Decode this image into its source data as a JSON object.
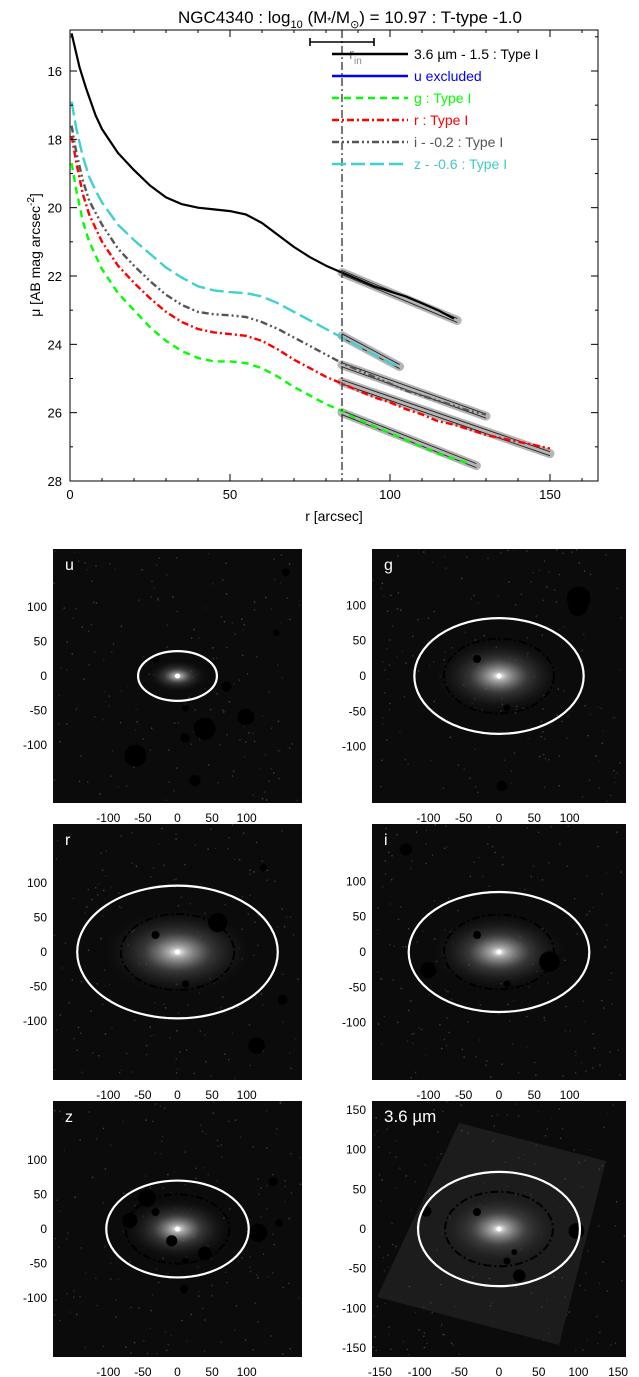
{
  "chart_data": [
    {
      "type": "line",
      "title": "NGC4340 : log10 (M*/M⊙) = 10.97 : T-type -1.0",
      "title_parts": [
        "NGC4340 : log",
        "10",
        " (M",
        "*",
        "/M",
        "⊙",
        ") = 10.97 : T-type -1.0"
      ],
      "xlabel": "r [arcsec]",
      "ylabel_parts": [
        "μ [AB mag arcsec",
        "-2",
        "]"
      ],
      "xlim": [
        0,
        165
      ],
      "ylim": [
        28,
        14.8
      ],
      "x_ticks": [
        0,
        50,
        100,
        150
      ],
      "y_ticks": [
        16,
        18,
        20,
        22,
        24,
        26,
        28
      ],
      "y_reversed": true,
      "grid": false,
      "legend_position": "top-right",
      "r_break": 85,
      "r_break_label": "r",
      "r_break_label_sub": "in",
      "r_break_errorbar": [
        75,
        95
      ],
      "fits": [
        {
          "series": "3.6 µm",
          "x": [
            85,
            121
          ],
          "y": [
            21.9,
            23.3
          ]
        },
        {
          "series": "g",
          "x": [
            85,
            127
          ],
          "y": [
            26.0,
            27.55
          ]
        },
        {
          "series": "r",
          "x": [
            85,
            150
          ],
          "y": [
            25.1,
            27.2
          ]
        },
        {
          "series": "i",
          "x": [
            85,
            130
          ],
          "y": [
            24.6,
            26.1
          ]
        },
        {
          "series": "z",
          "x": [
            85,
            103
          ],
          "y": [
            23.75,
            24.65
          ]
        }
      ],
      "series": [
        {
          "name": "3.6 µm - 1.5 : Type I",
          "key": "3.6 µm",
          "color": "#000000",
          "style": "solid",
          "x": [
            0.5,
            3,
            5,
            8,
            10,
            15,
            20,
            25,
            30,
            35,
            40,
            45,
            50,
            55,
            60,
            65,
            70,
            75,
            80,
            85,
            90,
            95,
            100,
            105,
            110,
            115,
            120
          ],
          "y": [
            14.9,
            15.9,
            16.5,
            17.3,
            17.7,
            18.4,
            18.9,
            19.35,
            19.7,
            19.9,
            20.0,
            20.05,
            20.1,
            20.2,
            20.45,
            20.8,
            21.15,
            21.45,
            21.7,
            21.9,
            22.1,
            22.3,
            22.45,
            22.6,
            22.8,
            23.0,
            23.25
          ]
        },
        {
          "name": "u excluded",
          "key": "u",
          "color": "#0000ff",
          "style": "solid",
          "x": [],
          "y": []
        },
        {
          "name": "g : Type I",
          "key": "g",
          "color": "#00ff00",
          "style": "dash",
          "x": [
            0.5,
            2,
            4,
            6,
            8,
            10,
            15,
            20,
            25,
            30,
            35,
            40,
            45,
            50,
            55,
            60,
            65,
            70,
            75,
            80,
            85,
            90,
            95,
            100,
            105,
            110,
            115,
            120,
            125
          ],
          "y": [
            18.7,
            19.5,
            20.4,
            21.0,
            21.4,
            21.8,
            22.5,
            23.0,
            23.5,
            23.9,
            24.2,
            24.4,
            24.5,
            24.5,
            24.55,
            24.7,
            24.95,
            25.25,
            25.5,
            25.75,
            25.95,
            26.2,
            26.4,
            26.6,
            26.8,
            27.0,
            27.2,
            27.35,
            27.5
          ]
        },
        {
          "name": "r : Type I",
          "key": "r",
          "color": "#ff0000",
          "style": "dashdot",
          "x": [
            0.5,
            2,
            4,
            6,
            8,
            10,
            15,
            20,
            25,
            30,
            35,
            40,
            45,
            50,
            55,
            60,
            65,
            70,
            75,
            80,
            85,
            90,
            95,
            100,
            105,
            110,
            115,
            120,
            125,
            130,
            135,
            140,
            145,
            150
          ],
          "y": [
            17.9,
            18.7,
            19.6,
            20.2,
            20.6,
            21.0,
            21.7,
            22.2,
            22.65,
            23.05,
            23.35,
            23.55,
            23.65,
            23.7,
            23.75,
            23.9,
            24.15,
            24.45,
            24.7,
            24.95,
            25.15,
            25.35,
            25.55,
            25.7,
            25.9,
            26.05,
            26.25,
            26.35,
            26.5,
            26.65,
            26.75,
            26.85,
            26.95,
            27.05
          ]
        },
        {
          "name": "i - -0.2 : Type I",
          "key": "i",
          "color": "#555555",
          "style": "dashdotdot",
          "x": [
            0.5,
            2,
            4,
            6,
            8,
            10,
            15,
            20,
            25,
            30,
            35,
            40,
            45,
            50,
            55,
            60,
            65,
            70,
            75,
            80,
            85,
            90,
            95,
            100,
            105,
            110,
            115,
            120,
            125,
            130
          ],
          "y": [
            17.6,
            18.4,
            19.2,
            19.8,
            20.15,
            20.5,
            21.2,
            21.7,
            22.15,
            22.55,
            22.85,
            23.05,
            23.12,
            23.15,
            23.2,
            23.35,
            23.55,
            23.8,
            24.05,
            24.3,
            24.55,
            24.75,
            24.95,
            25.15,
            25.35,
            25.5,
            25.65,
            25.8,
            25.95,
            26.05
          ]
        },
        {
          "name": "z - -0.6 : Type I",
          "key": "z",
          "color": "#40d0d0",
          "style": "longdash",
          "x": [
            0.5,
            2,
            4,
            6,
            8,
            10,
            15,
            20,
            25,
            30,
            35,
            40,
            45,
            50,
            55,
            60,
            65,
            70,
            75,
            80,
            85,
            90,
            95,
            100,
            103
          ],
          "y": [
            16.9,
            17.7,
            18.5,
            19.1,
            19.5,
            19.85,
            20.5,
            20.95,
            21.35,
            21.75,
            22.05,
            22.3,
            22.42,
            22.47,
            22.5,
            22.6,
            22.8,
            23.05,
            23.3,
            23.55,
            23.8,
            24.05,
            24.3,
            24.55,
            24.65
          ]
        }
      ]
    },
    {
      "type": "heatmap",
      "panels": [
        {
          "label": "u",
          "ellipse_a": 57,
          "ellipse_b": 36,
          "inner_a": 0,
          "inner_b": 0,
          "mask_circles": 8,
          "x_ticks": [
            -100,
            -50,
            0,
            50,
            100
          ],
          "y_ticks": [
            100,
            50,
            0,
            -50,
            -100
          ],
          "lim": 180
        },
        {
          "label": "g",
          "ellipse_a": 120,
          "ellipse_b": 82,
          "inner_a": 78,
          "inner_b": 53,
          "mask_circles": 3,
          "x_ticks": [
            -100,
            -50,
            0,
            50,
            100
          ],
          "y_ticks": [
            100,
            50,
            0,
            -50,
            -100
          ],
          "lim": 180
        },
        {
          "label": "r",
          "ellipse_a": 145,
          "ellipse_b": 96,
          "inner_a": 82,
          "inner_b": 55,
          "mask_circles": 4,
          "x_ticks": [
            -100,
            -50,
            0,
            50,
            100
          ],
          "y_ticks": [
            100,
            50,
            0,
            -50,
            -100
          ],
          "lim": 180
        },
        {
          "label": "i",
          "ellipse_a": 128,
          "ellipse_b": 85,
          "inner_a": 78,
          "inner_b": 53,
          "mask_circles": 3,
          "x_ticks": [
            -100,
            -50,
            0,
            50,
            100
          ],
          "y_ticks": [
            100,
            50,
            0,
            -50,
            -100
          ],
          "lim": 180
        },
        {
          "label": "z",
          "ellipse_a": 103,
          "ellipse_b": 70,
          "inner_a": 75,
          "inner_b": 50,
          "mask_circles": 8,
          "x_ticks": [
            -100,
            -50,
            0,
            50,
            100
          ],
          "y_ticks": [
            100,
            50,
            0,
            -50,
            -100
          ],
          "lim": 180
        },
        {
          "label": "3.6 µm",
          "ellipse_a": 102,
          "ellipse_b": 72,
          "inner_a": 68,
          "inner_b": 47,
          "mask_circles": 4,
          "x_ticks": [
            -150,
            -100,
            -50,
            0,
            50,
            100,
            150
          ],
          "y_ticks": [
            150,
            100,
            50,
            0,
            -50,
            -100,
            -150
          ],
          "lim": 160
        }
      ]
    }
  ]
}
